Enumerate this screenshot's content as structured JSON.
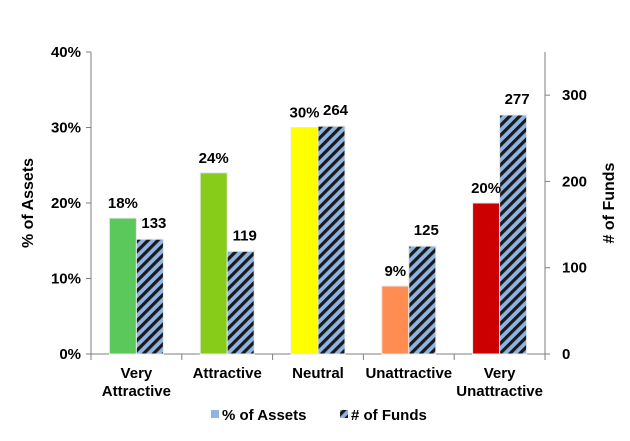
{
  "chart_data": {
    "type": "bar",
    "categories": [
      [
        "Very",
        "Attractive"
      ],
      [
        "Attractive"
      ],
      [
        "Neutral"
      ],
      [
        "Unattractive"
      ],
      [
        "Very",
        "Unattractive"
      ]
    ],
    "series": [
      {
        "name": "% of Assets",
        "axis": "left",
        "values": [
          18,
          24,
          30,
          9,
          20
        ],
        "value_labels": [
          "18%",
          "24%",
          "30%",
          "9%",
          "20%"
        ],
        "colors": [
          "#5ac85a",
          "#88cc1a",
          "#ffff00",
          "#ff8c50",
          "#cc0000"
        ]
      },
      {
        "name": "# of Funds",
        "axis": "right",
        "values": [
          133,
          119,
          264,
          125,
          277
        ],
        "value_labels": [
          "133",
          "119",
          "264",
          "125",
          "277"
        ],
        "pattern": "diagonal-stripes",
        "colors": [
          "#8fb4e3",
          "#1a1a1a"
        ]
      }
    ],
    "left_axis": {
      "title": "% of Assets",
      "min": 0,
      "max": 40,
      "ticks": [
        0,
        10,
        20,
        30,
        40
      ],
      "tick_labels": [
        "0%",
        "10%",
        "20%",
        "30%",
        "40%"
      ]
    },
    "right_axis": {
      "title": "# of Funds",
      "min": 0,
      "max": 350,
      "ticks": [
        0,
        100,
        200,
        300
      ],
      "tick_labels": [
        "0",
        "100",
        "200",
        "300"
      ]
    },
    "grid": false,
    "legend": {
      "position": "bottom",
      "entries": [
        "% of Assets",
        "# of Funds"
      ]
    }
  }
}
